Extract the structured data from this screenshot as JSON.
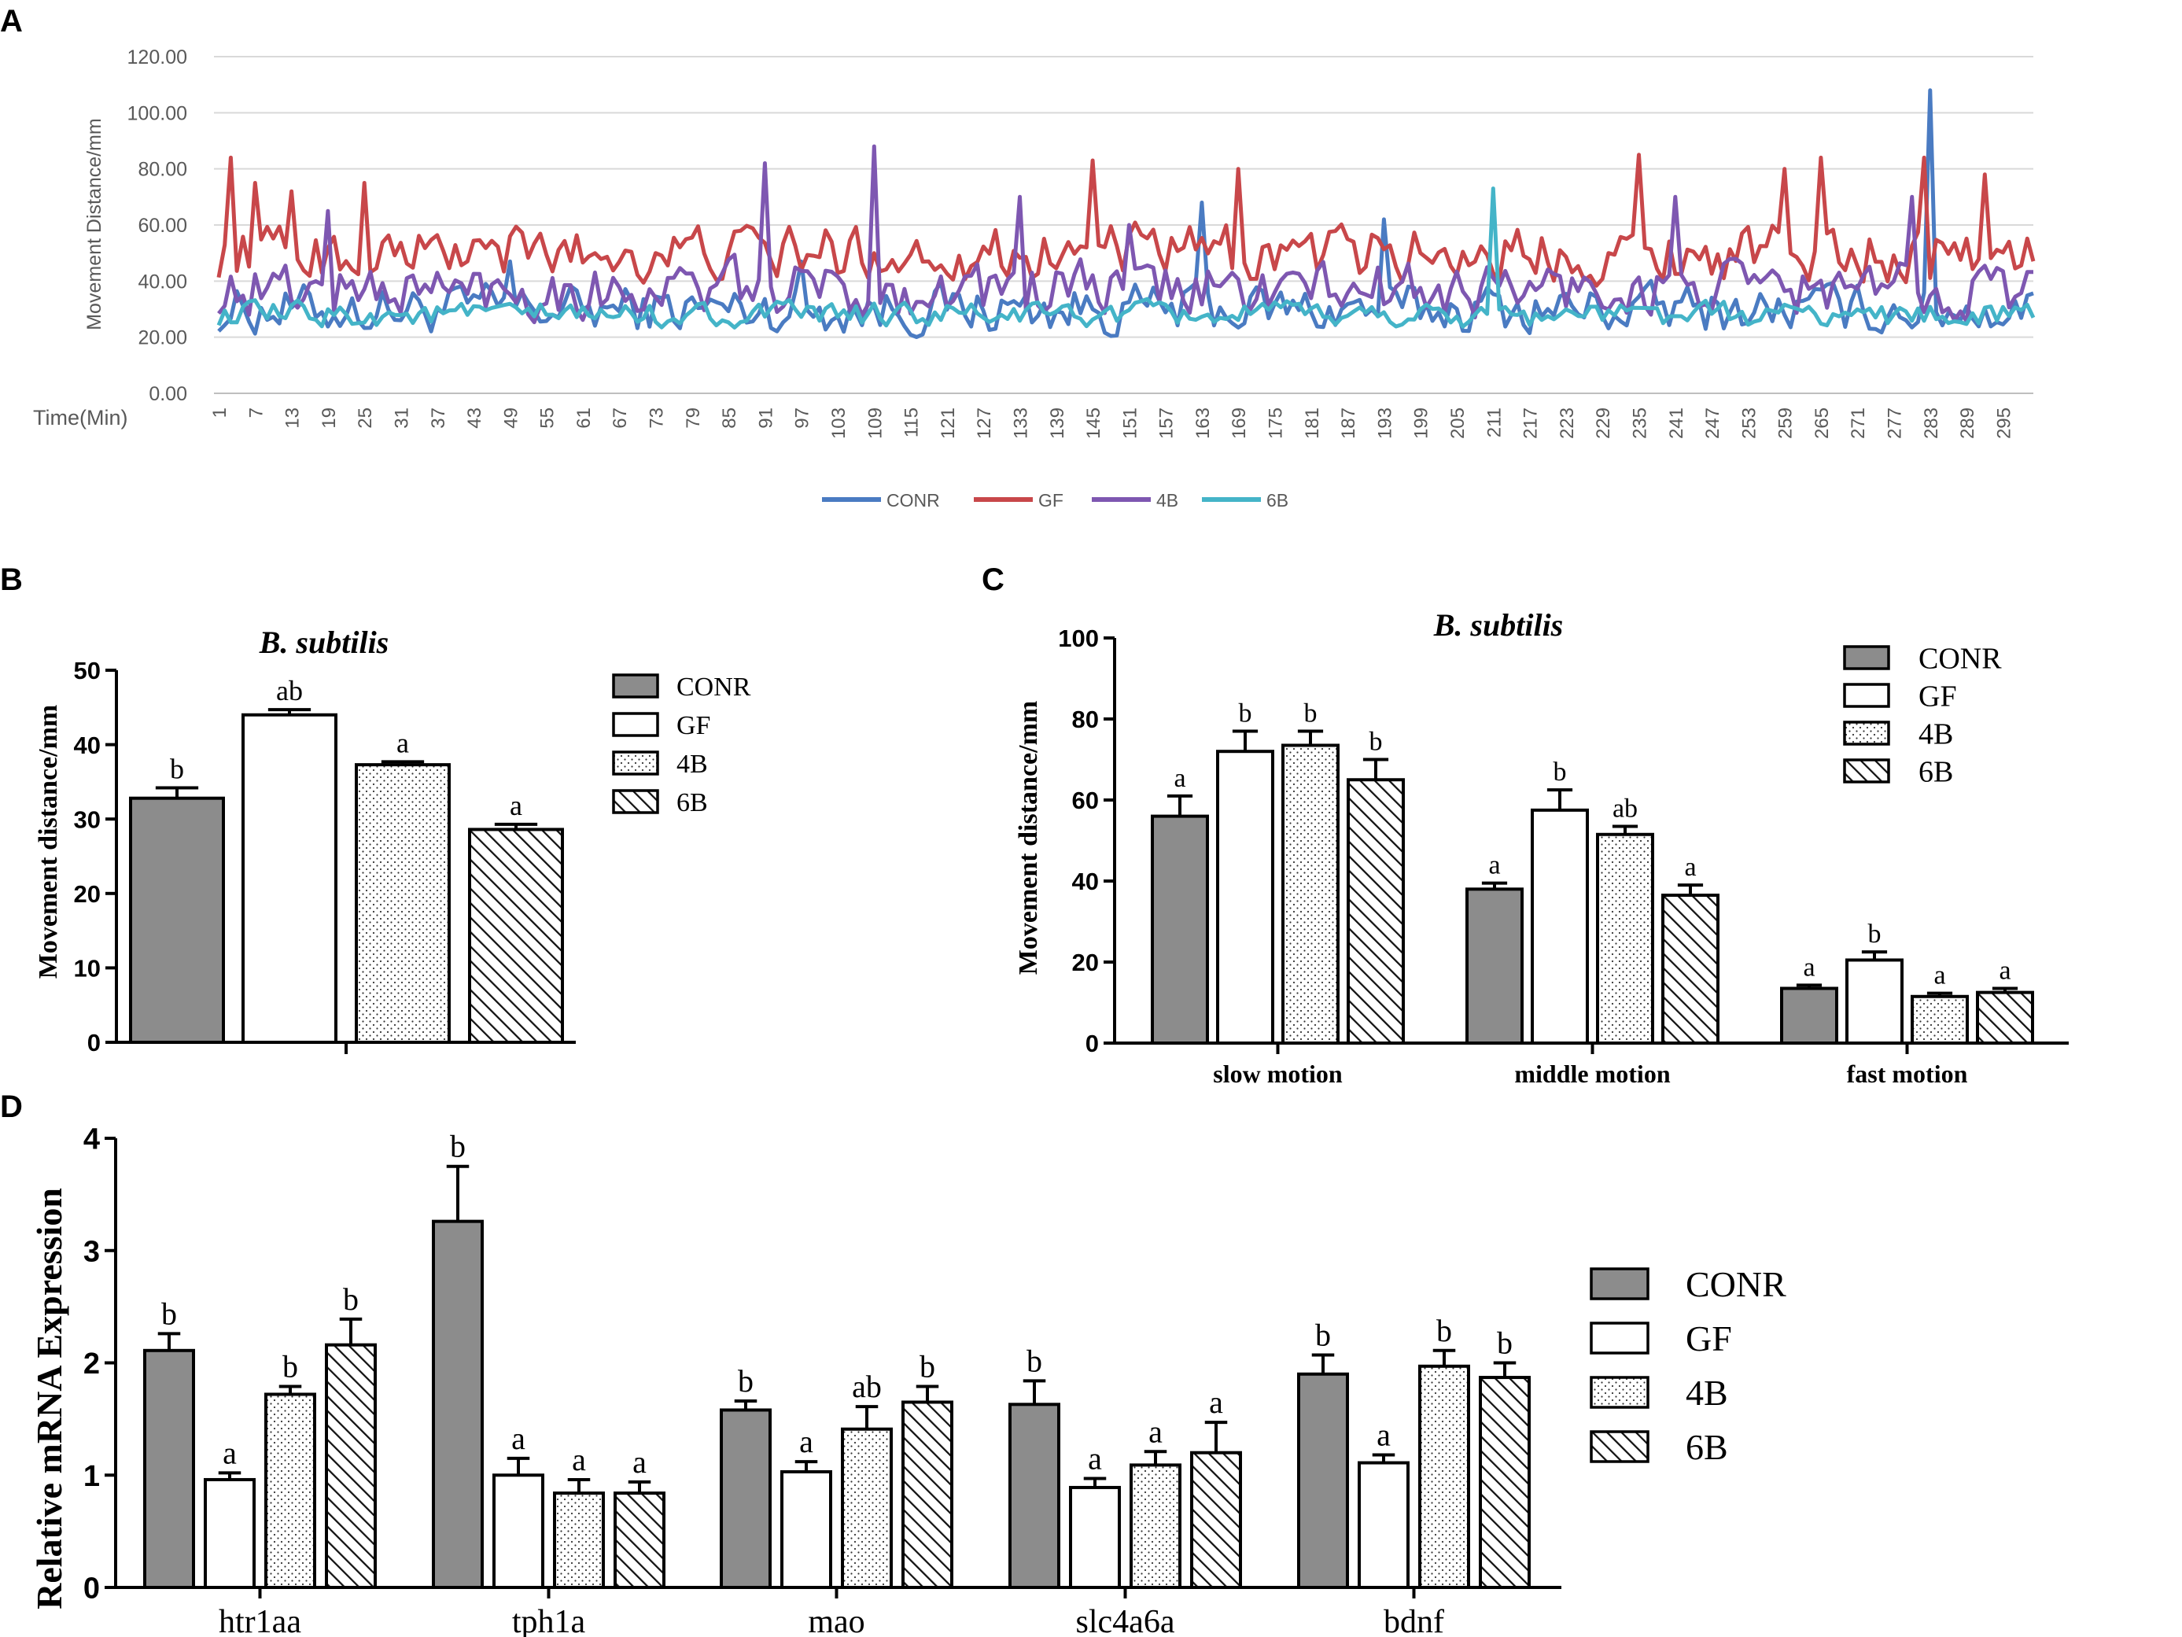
{
  "panels": {
    "a": "A",
    "b": "B",
    "c": "C",
    "d": "D"
  },
  "colors": {
    "CONR_line": "#4a7bc2",
    "GF_line": "#c8474a",
    "4B_line": "#7e57b1",
    "6B_line": "#44b4c8",
    "bar_gray": "#8c8c8c"
  },
  "chart_data": [
    {
      "id": "A",
      "type": "line",
      "title": "",
      "xlabel": "Time(Min)",
      "ylabel": "Movement Distance/mm",
      "ylim": [
        0,
        120
      ],
      "yticks": [
        "0.00",
        "20.00",
        "40.00",
        "60.00",
        "80.00",
        "100.00",
        "120.00"
      ],
      "x_start": 1,
      "x_end": 300,
      "xtick_labels": [
        "1",
        "7",
        "13",
        "19",
        "25",
        "31",
        "37",
        "43",
        "49",
        "55",
        "61",
        "67",
        "73",
        "79",
        "85",
        "91",
        "97",
        "103",
        "109",
        "115",
        "121",
        "127",
        "133",
        "139",
        "145",
        "151",
        "157",
        "163",
        "169",
        "175",
        "181",
        "187",
        "193",
        "199",
        "205",
        "211",
        "217",
        "223",
        "229",
        "235",
        "241",
        "247",
        "253",
        "259",
        "265",
        "271",
        "277",
        "283",
        "289",
        "295"
      ],
      "grid": true,
      "legend_position": "bottom-center",
      "series": [
        {
          "name": "CONR",
          "mean": 30,
          "spread": 8,
          "min": 12,
          "spikes": [
            [
              49,
              47
            ],
            [
              97,
              47
            ],
            [
              163,
              68
            ],
            [
              193,
              62
            ],
            [
              283,
              108
            ]
          ]
        },
        {
          "name": "GF",
          "mean": 50,
          "spread": 9,
          "min": 32,
          "spikes": [
            [
              3,
              84
            ],
            [
              7,
              75
            ],
            [
              13,
              72
            ],
            [
              25,
              75
            ],
            [
              145,
              83
            ],
            [
              169,
              80
            ],
            [
              235,
              85
            ],
            [
              259,
              80
            ],
            [
              265,
              84
            ],
            [
              282,
              84
            ],
            [
              292,
              78
            ]
          ]
        },
        {
          "name": "4B",
          "mean": 37,
          "spread": 9,
          "min": 18,
          "spikes": [
            [
              19,
              65
            ],
            [
              91,
              82
            ],
            [
              109,
              88
            ],
            [
              133,
              70
            ],
            [
              151,
              60
            ],
            [
              241,
              70
            ],
            [
              280,
              70
            ]
          ]
        },
        {
          "name": "6B",
          "mean": 28,
          "spread": 4,
          "min": 17,
          "spikes": [
            [
              211,
              73
            ]
          ]
        }
      ]
    },
    {
      "id": "B",
      "type": "bar",
      "title": "B. subtilis",
      "ylabel": "Movement distance/mm",
      "xlabel": "",
      "ylim": [
        0,
        50
      ],
      "yticks": [
        "0",
        "10",
        "20",
        "30",
        "40",
        "50"
      ],
      "categories": [
        "CONR",
        "GF",
        "4B",
        "6B"
      ],
      "values": [
        32.8,
        44.0,
        37.3,
        28.6
      ],
      "errors": [
        1.4,
        0.7,
        0.4,
        0.7
      ],
      "letters": [
        "b",
        "ab",
        "a",
        "a"
      ],
      "legend": [
        "CONR",
        "GF",
        "4B",
        "6B"
      ]
    },
    {
      "id": "C",
      "type": "bar",
      "title": "B. subtilis",
      "ylabel": "Movement distance/mm",
      "xlabel": "",
      "ylim": [
        0,
        100
      ],
      "yticks": [
        "0",
        "20",
        "40",
        "60",
        "80",
        "100"
      ],
      "categories": [
        "slow motion",
        "middle motion",
        "fast motion"
      ],
      "series": [
        {
          "name": "CONR",
          "values": [
            56,
            38,
            13.5
          ],
          "errors": [
            5,
            1.5,
            0.8
          ],
          "letters": [
            "a",
            "a",
            "a"
          ]
        },
        {
          "name": "GF",
          "values": [
            72,
            57.5,
            20.5
          ],
          "errors": [
            5,
            5,
            2
          ],
          "letters": [
            "b",
            "b",
            "b"
          ]
        },
        {
          "name": "4B",
          "values": [
            73.5,
            51.5,
            11.5
          ],
          "errors": [
            3.5,
            2,
            0.8
          ],
          "letters": [
            "b",
            "ab",
            "a"
          ]
        },
        {
          "name": "6B",
          "values": [
            65,
            36.5,
            12.5
          ],
          "errors": [
            5,
            2.5,
            1
          ],
          "letters": [
            "b",
            "a",
            "a"
          ]
        }
      ],
      "legend": [
        "CONR",
        "GF",
        "4B",
        "6B"
      ]
    },
    {
      "id": "D",
      "type": "bar",
      "title": "",
      "ylabel": "Relative mRNA Expression",
      "xlabel": "",
      "ylim": [
        0,
        4
      ],
      "yticks": [
        "0",
        "1",
        "2",
        "3",
        "4"
      ],
      "categories": [
        "htr1aa",
        "tph1a",
        "mao",
        "slc4a6a",
        "bdnf"
      ],
      "series": [
        {
          "name": "CONR",
          "values": [
            2.11,
            3.26,
            1.58,
            1.63,
            1.9
          ],
          "errors": [
            0.15,
            0.49,
            0.08,
            0.21,
            0.17
          ],
          "letters": [
            "b",
            "b",
            "b",
            "b",
            "b"
          ]
        },
        {
          "name": "GF",
          "values": [
            0.96,
            1.0,
            1.03,
            0.89,
            1.11
          ],
          "errors": [
            0.06,
            0.15,
            0.09,
            0.08,
            0.07
          ],
          "letters": [
            "a",
            "a",
            "a",
            "a",
            "a"
          ]
        },
        {
          "name": "4B",
          "values": [
            1.72,
            0.84,
            1.41,
            1.09,
            1.97
          ],
          "errors": [
            0.07,
            0.12,
            0.2,
            0.12,
            0.14
          ],
          "letters": [
            "b",
            "a",
            "ab",
            "a",
            "b"
          ]
        },
        {
          "name": "6B",
          "values": [
            2.16,
            0.84,
            1.65,
            1.2,
            1.87
          ],
          "errors": [
            0.23,
            0.1,
            0.14,
            0.27,
            0.13
          ],
          "letters": [
            "b",
            "a",
            "b",
            "a",
            "b"
          ]
        }
      ],
      "legend": [
        "CONR",
        "GF",
        "4B",
        "6B"
      ]
    }
  ]
}
